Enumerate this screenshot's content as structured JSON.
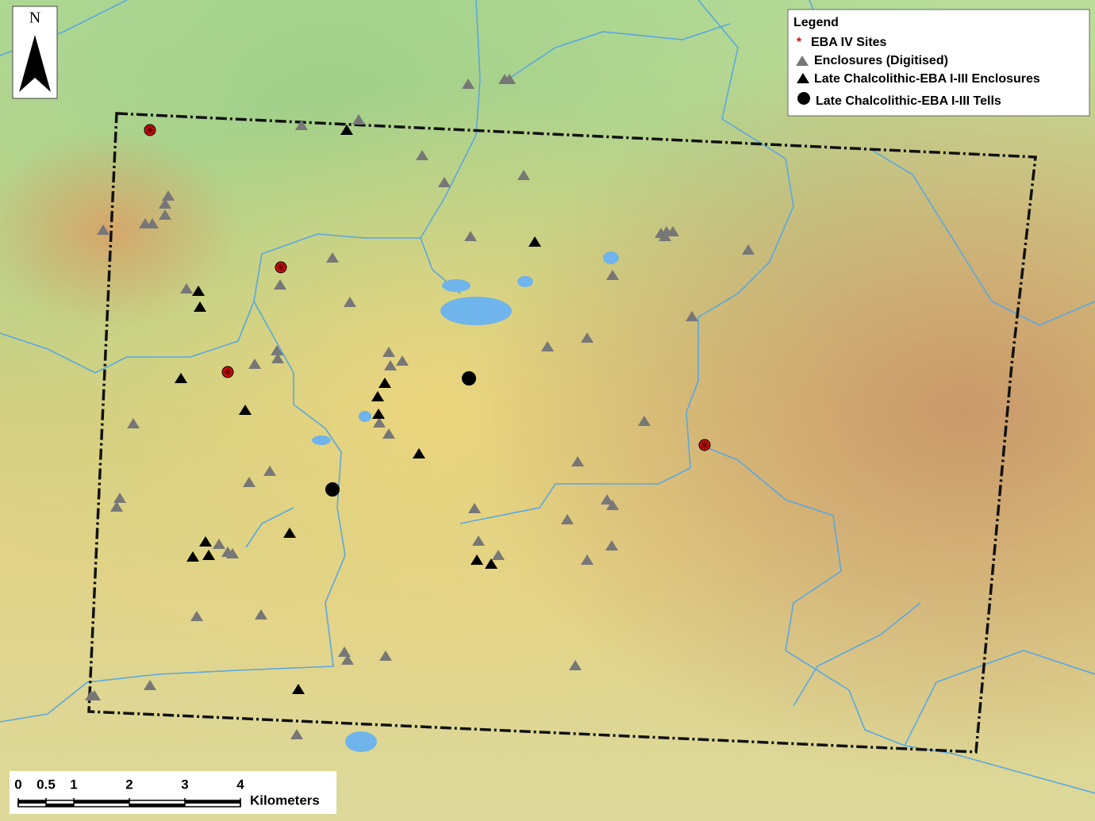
{
  "north_arrow": {
    "label": "N"
  },
  "legend": {
    "title": "Legend",
    "items": [
      "EBA IV Sites",
      "Enclosures (Digitised)",
      "Late Chalcolithic-EBA I-III Enclosures",
      "Late Chalcolithic-EBA I-III Tells"
    ]
  },
  "scale_bar": {
    "ticks": [
      0,
      0.5,
      1,
      2,
      3,
      4
    ],
    "unit": "Kilometers"
  }
}
